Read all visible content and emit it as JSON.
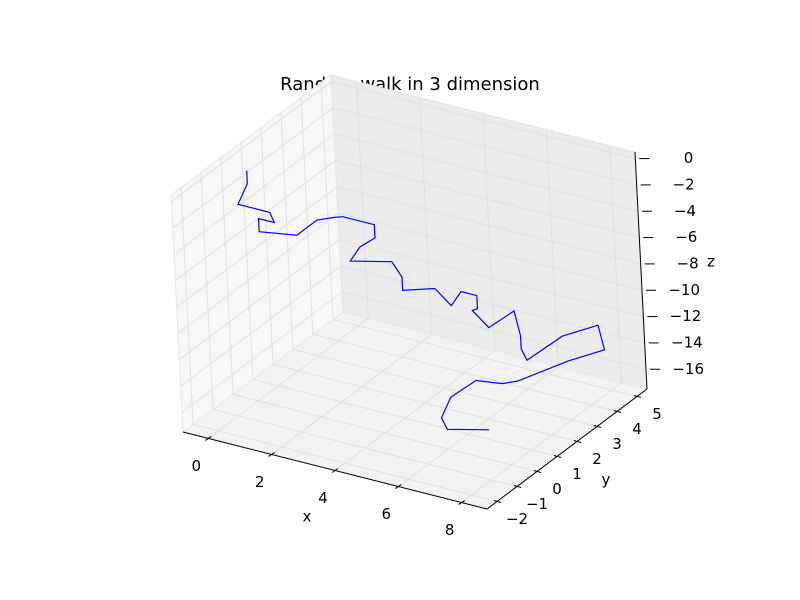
{
  "chart_data": {
    "type": "line3d",
    "title": "Random walk in 3 dimension",
    "xlabel": "x",
    "ylabel": "y",
    "zlabel": "z",
    "xlim": [
      -0.8,
      8.8
    ],
    "ylim": [
      -2.5,
      5.5
    ],
    "zlim": [
      -17.5,
      0.5
    ],
    "xticks": [
      0,
      2,
      4,
      6,
      8
    ],
    "yticks": [
      {
        "value": -2,
        "label": "−2"
      },
      {
        "value": -1,
        "label": "−1"
      },
      0,
      1,
      2,
      3,
      4,
      5
    ],
    "zticks": [
      0,
      {
        "value": -2,
        "label": "−2"
      },
      {
        "value": -4,
        "label": "−4"
      },
      {
        "value": -6,
        "label": "−6"
      },
      {
        "value": -8,
        "label": "−8"
      },
      {
        "value": -10,
        "label": "−10"
      },
      {
        "value": -12,
        "label": "−12"
      },
      {
        "value": -14,
        "label": "−14"
      },
      {
        "value": -16,
        "label": "−16"
      }
    ],
    "grid": true,
    "series": [
      {
        "color": "#0000ff",
        "x": [
          0,
          0,
          0,
          1,
          1,
          0.5,
          0.5,
          1.5,
          1.5,
          2,
          2,
          3,
          3,
          2.5,
          2.5,
          3.5,
          3.8,
          3.8,
          4.5,
          5,
          5,
          5.5,
          5.5,
          5,
          5.5,
          6,
          6.5,
          6.5,
          7,
          7.5,
          8,
          8.5,
          8,
          7,
          6.5,
          6,
          5.5,
          5.5,
          6,
          7
        ],
        "y": [
          0,
          0,
          -0.5,
          -0.5,
          -0.3,
          -0.3,
          -0.3,
          0,
          1,
          1,
          1.5,
          1.5,
          1.5,
          1.5,
          1,
          1.5,
          1.5,
          1.5,
          2,
          2,
          2.5,
          2.5,
          2.5,
          3,
          3,
          3.5,
          3,
          3,
          2.5,
          3.5,
          4.5,
          4,
          3,
          2,
          2,
          1.5,
          1,
          0.5,
          0,
          0.5
        ],
        "z": [
          0,
          -1,
          -2,
          -2,
          -3,
          -3,
          -4,
          -4,
          -4,
          -3.5,
          -4,
          -4,
          -5,
          -6,
          -6.5,
          -6.5,
          -7.5,
          -8.5,
          -8.5,
          -9.5,
          -9,
          -9,
          -10,
          -11,
          -12,
          -11,
          -12,
          -13,
          -13,
          -12,
          -12,
          -13,
          -13,
          -14,
          -14.5,
          -14,
          -15,
          -16,
          -16,
          -16
        ]
      }
    ]
  }
}
